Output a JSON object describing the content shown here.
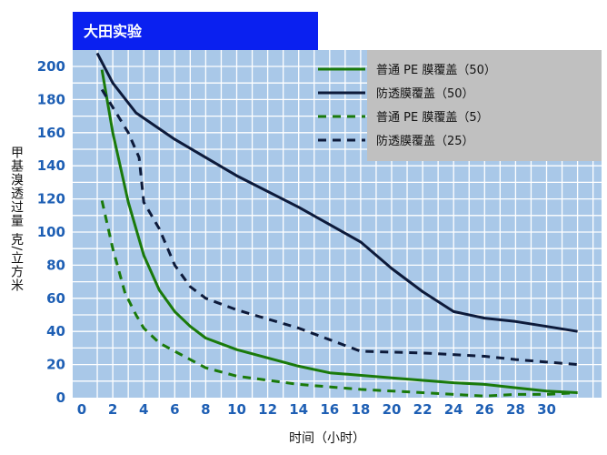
{
  "chart_data": {
    "type": "line",
    "title": "大田实验",
    "xlabel": "时间（小时）",
    "ylabel": "甲基溴透过量 克/立方米",
    "xlim": [
      0,
      33
    ],
    "ylim": [
      0,
      205
    ],
    "xticks": [
      0,
      2,
      4,
      6,
      8,
      10,
      12,
      14,
      16,
      18,
      20,
      22,
      24,
      26,
      28,
      30
    ],
    "yticks": [
      0,
      20,
      40,
      60,
      80,
      100,
      120,
      140,
      160,
      180,
      200
    ],
    "grid": true,
    "legend_position": "top-right",
    "colors": {
      "plot_background": "#a9c8e8",
      "grid": "#ffffff",
      "banner": "#0a20f0",
      "tick_labels": "#1e5fb4",
      "legend_background": "#c0c0c0",
      "green": "#1a7a0a",
      "navy": "#0d1a3a"
    },
    "series": [
      {
        "name": "普通 PE 膜覆盖（50）",
        "color": "#1a7a0a",
        "style": "solid",
        "points": [
          [
            1.3,
            198
          ],
          [
            2,
            160
          ],
          [
            3,
            118
          ],
          [
            4,
            86
          ],
          [
            5,
            65
          ],
          [
            6,
            52
          ],
          [
            7,
            43
          ],
          [
            8,
            36
          ],
          [
            10,
            29
          ],
          [
            12,
            24
          ],
          [
            14,
            19
          ],
          [
            16,
            15
          ],
          [
            20,
            12
          ],
          [
            24,
            9
          ],
          [
            26,
            8
          ],
          [
            28,
            6
          ],
          [
            30,
            4
          ],
          [
            32,
            3
          ]
        ]
      },
      {
        "name": "防透膜覆盖（50）",
        "color": "#0d1a3a",
        "style": "solid",
        "points": [
          [
            1,
            208
          ],
          [
            2,
            190
          ],
          [
            3.5,
            172
          ],
          [
            6,
            156
          ],
          [
            10,
            134
          ],
          [
            14,
            115
          ],
          [
            18,
            94
          ],
          [
            20,
            78
          ],
          [
            22,
            64
          ],
          [
            24,
            52
          ],
          [
            26,
            48
          ],
          [
            28,
            46
          ],
          [
            30,
            43
          ],
          [
            32,
            40
          ]
        ]
      },
      {
        "name": "普通 PE 膜覆盖（5）",
        "color": "#1a7a0a",
        "style": "dashed",
        "points": [
          [
            1.3,
            119
          ],
          [
            2,
            90
          ],
          [
            2.8,
            63
          ],
          [
            3.5,
            50
          ],
          [
            4,
            42
          ],
          [
            5,
            33
          ],
          [
            6,
            28
          ],
          [
            8,
            18
          ],
          [
            10,
            13
          ],
          [
            14,
            8
          ],
          [
            18,
            5
          ],
          [
            22,
            3
          ],
          [
            26,
            1
          ],
          [
            28,
            2
          ],
          [
            30,
            2
          ],
          [
            32,
            3
          ]
        ]
      },
      {
        "name": "防透膜覆盖（25）",
        "color": "#0d1a3a",
        "style": "dashed",
        "points": [
          [
            1.3,
            186
          ],
          [
            3,
            160
          ],
          [
            3.7,
            145
          ],
          [
            4,
            118
          ],
          [
            5,
            102
          ],
          [
            6,
            80
          ],
          [
            7,
            67
          ],
          [
            8,
            60
          ],
          [
            10,
            53
          ],
          [
            14,
            42
          ],
          [
            16,
            35
          ],
          [
            18,
            28
          ],
          [
            22,
            27
          ],
          [
            26,
            25
          ],
          [
            28,
            23
          ],
          [
            32,
            20
          ]
        ]
      }
    ]
  }
}
